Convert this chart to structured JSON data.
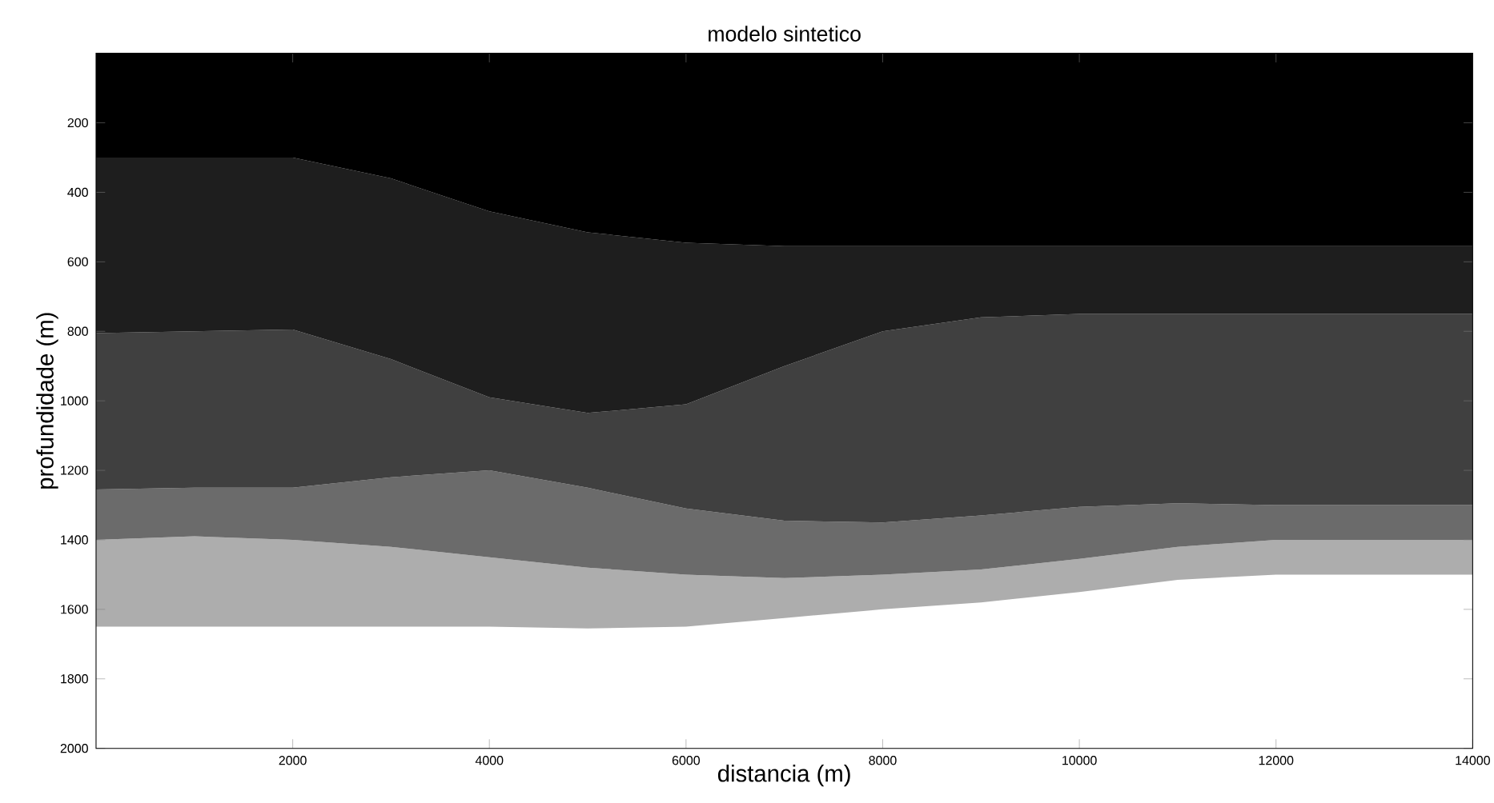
{
  "chart_data": {
    "type": "area",
    "stacked": true,
    "title": "modelo sintetico",
    "xlabel": "distancia (m)",
    "ylabel": "profundidade (m)",
    "x": [
      0,
      1000,
      2000,
      3000,
      4000,
      5000,
      6000,
      7000,
      8000,
      9000,
      10000,
      11000,
      12000,
      13000,
      14000
    ],
    "series": [
      {
        "color": "#000000",
        "values": [
          300,
          300,
          300,
          360,
          455,
          515,
          545,
          555,
          555,
          555,
          555,
          555,
          555,
          555,
          555
        ]
      },
      {
        "color": "#1e1e1e",
        "values": [
          505,
          500,
          495,
          520,
          535,
          520,
          465,
          345,
          245,
          205,
          195,
          195,
          195,
          195,
          195
        ]
      },
      {
        "color": "#404040",
        "values": [
          450,
          450,
          455,
          340,
          210,
          215,
          300,
          445,
          550,
          570,
          555,
          545,
          550,
          550,
          550
        ]
      },
      {
        "color": "#6b6b6b",
        "values": [
          145,
          140,
          150,
          200,
          250,
          230,
          190,
          165,
          150,
          155,
          150,
          125,
          100,
          100,
          100
        ]
      },
      {
        "color": "#adadad",
        "values": [
          250,
          260,
          250,
          230,
          200,
          175,
          150,
          115,
          100,
          95,
          95,
          95,
          100,
          100,
          100
        ]
      }
    ],
    "xlim": [
      0,
      14000
    ],
    "ylim": [
      2000,
      0
    ],
    "xticks": [
      2000,
      4000,
      6000,
      8000,
      10000,
      12000,
      14000
    ],
    "yticks": [
      200,
      400,
      600,
      800,
      1000,
      1200,
      1400,
      1600,
      1800,
      2000
    ],
    "grid": false
  }
}
